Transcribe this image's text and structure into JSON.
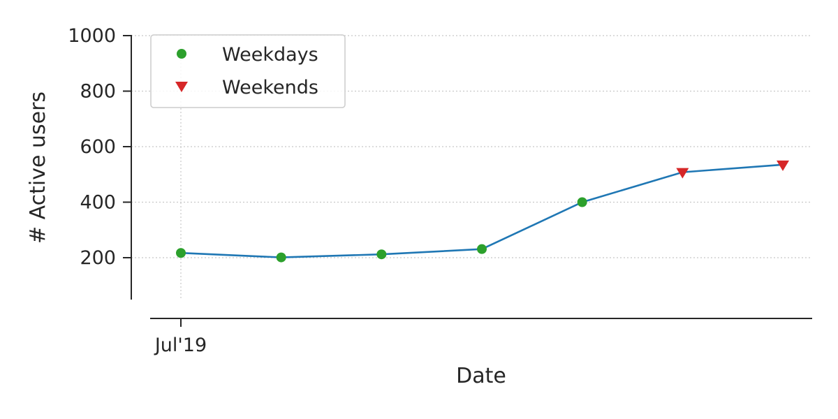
{
  "chart_data": {
    "type": "line",
    "title": "",
    "xlabel": "Date",
    "ylabel": "# Active users",
    "x": [
      "2019-07-01",
      "2019-07-02",
      "2019-07-03",
      "2019-07-04",
      "2019-07-05",
      "2019-07-06",
      "2019-07-07"
    ],
    "values": [
      217,
      201,
      212,
      231,
      400,
      508,
      535
    ],
    "x_tick_labels": [
      {
        "x": "2019-07-01",
        "label": "Jul'19"
      }
    ],
    "y_ticks": [
      200,
      400,
      600,
      800,
      1000
    ],
    "xlim": [
      "2019-07-01",
      "2019-07-07"
    ],
    "ylim": [
      50,
      1000
    ],
    "grid": true,
    "line_color": "#1f77b4",
    "legend": {
      "placement": "top-left",
      "entries": [
        {
          "name": "Weekdays",
          "marker": "circle",
          "color": "#2ca02c"
        },
        {
          "name": "Weekends",
          "marker": "triangle-down",
          "color": "#d62728"
        }
      ]
    },
    "marker_groups": [
      "Weekdays",
      "Weekdays",
      "Weekdays",
      "Weekdays",
      "Weekdays",
      "Weekends",
      "Weekends"
    ]
  }
}
